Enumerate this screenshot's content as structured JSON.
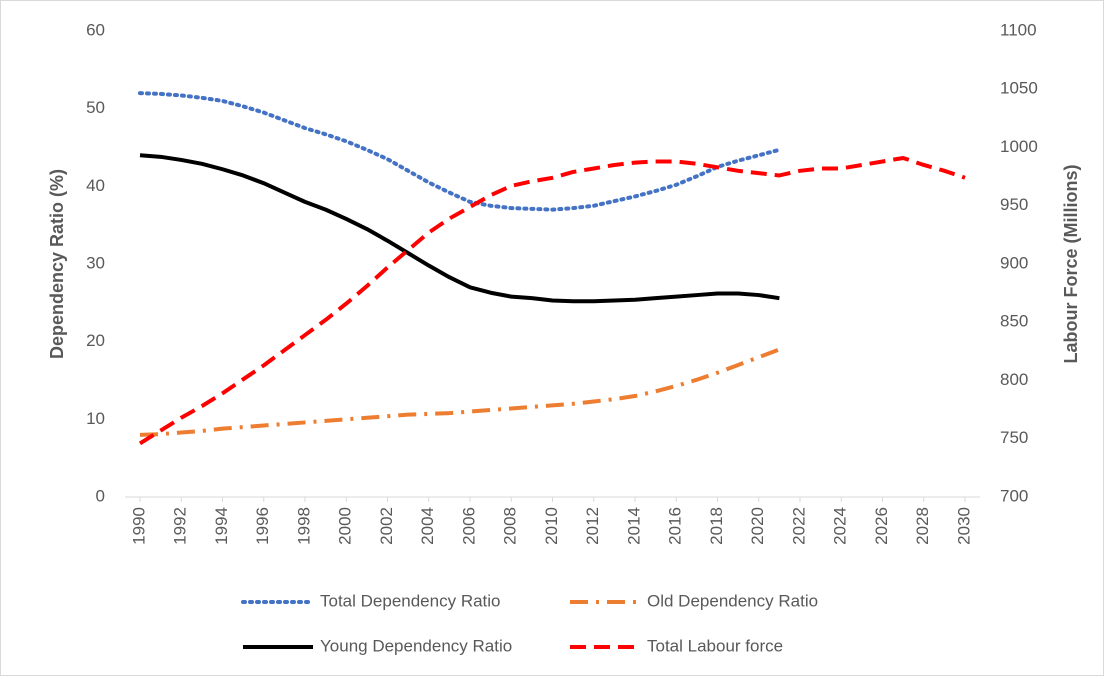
{
  "chart_data": {
    "type": "line",
    "y_label": "Dependency Ratio (%)",
    "y2_label": "Labour Force (Millions)",
    "x": [
      1990,
      1991,
      1992,
      1993,
      1994,
      1995,
      1996,
      1997,
      1998,
      1999,
      2000,
      2001,
      2002,
      2003,
      2004,
      2005,
      2006,
      2007,
      2008,
      2009,
      2010,
      2011,
      2012,
      2013,
      2014,
      2015,
      2016,
      2017,
      2018,
      2019,
      2020,
      2021,
      2022,
      2023,
      2024,
      2025,
      2026,
      2027,
      2028,
      2029,
      2030
    ],
    "xlim": [
      1990,
      2030
    ],
    "xticks": [
      1990,
      1992,
      1994,
      1996,
      1998,
      2000,
      2002,
      2004,
      2006,
      2008,
      2010,
      2012,
      2014,
      2016,
      2018,
      2020,
      2022,
      2024,
      2026,
      2028,
      2030
    ],
    "ylim": [
      0,
      60
    ],
    "yticks": [
      0,
      10,
      20,
      30,
      40,
      50,
      60
    ],
    "y2lim": [
      700,
      1100
    ],
    "y2ticks": [
      700,
      750,
      800,
      850,
      900,
      950,
      1000,
      1050,
      1100
    ],
    "grid": false,
    "legend": "bottom",
    "series": [
      {
        "name": "Total Dependency Ratio",
        "color": "#4472c4",
        "style": "dotted",
        "values": [
          52,
          51.9,
          51.7,
          51.4,
          51,
          50.3,
          49.5,
          48.5,
          47.5,
          46.7,
          45.8,
          44.7,
          43.5,
          42,
          40.5,
          39.2,
          38,
          37.5,
          37.2,
          37.1,
          37,
          37.2,
          37.5,
          38.1,
          38.7,
          39.4,
          40.2,
          41.3,
          42.5,
          43.3,
          44,
          44.7,
          null,
          null,
          null,
          null,
          null,
          null,
          null,
          null,
          null
        ]
      },
      {
        "name": "Old Dependency Ratio",
        "color": "#ed7d31",
        "style": "dashdot",
        "values": [
          8,
          8.1,
          8.3,
          8.5,
          8.8,
          9,
          9.2,
          9.4,
          9.6,
          9.8,
          10,
          10.2,
          10.4,
          10.6,
          10.7,
          10.8,
          11,
          11.2,
          11.4,
          11.6,
          11.8,
          12,
          12.3,
          12.6,
          13,
          13.6,
          14.3,
          15.1,
          16,
          17,
          18,
          19,
          null,
          null,
          null,
          null,
          null,
          null,
          null,
          null,
          null
        ]
      },
      {
        "name": "Young Dependency Ratio",
        "color": "#000000",
        "style": "solid",
        "values": [
          44,
          43.8,
          43.4,
          42.9,
          42.2,
          41.4,
          40.4,
          39.2,
          38,
          37,
          35.8,
          34.5,
          33,
          31.4,
          29.8,
          28.3,
          27,
          26.3,
          25.8,
          25.6,
          25.3,
          25.2,
          25.2,
          25.3,
          25.4,
          25.6,
          25.8,
          26,
          26.2,
          26.2,
          26,
          25.6,
          null,
          null,
          null,
          null,
          null,
          null,
          null,
          null,
          null
        ]
      },
      {
        "name": "Total Labour force",
        "color": "#ff0000",
        "style": "dashed",
        "axis": "y2",
        "values": [
          746,
          757,
          768,
          778,
          789,
          801,
          813,
          826,
          839,
          852,
          866,
          881,
          897,
          912,
          927,
          939,
          949,
          959,
          967,
          971,
          974,
          979,
          982,
          985,
          987,
          988,
          988,
          986,
          983,
          980,
          978,
          976,
          980,
          982,
          982,
          985,
          988,
          991,
          985,
          980,
          974
        ]
      }
    ]
  }
}
